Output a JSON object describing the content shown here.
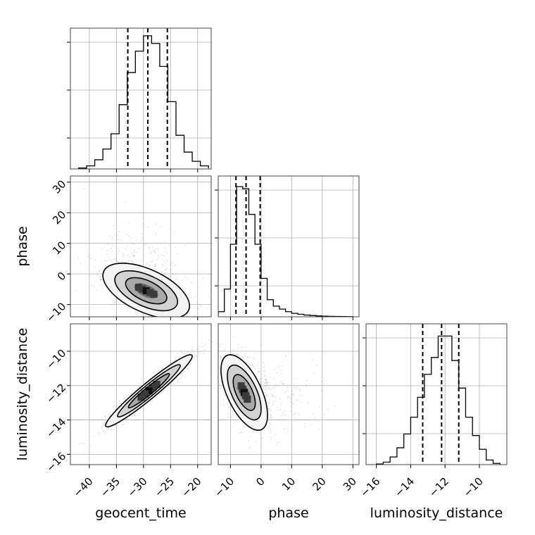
{
  "chart_data": {
    "type": "corner",
    "parameters": [
      "geocent_time",
      "phase",
      "luminosity_distance"
    ],
    "axis_labels": {
      "x": [
        "geocent_time",
        "phase",
        "luminosity_distance"
      ],
      "y": [
        "phase",
        "luminosity_distance"
      ]
    },
    "ranges": {
      "geocent_time": [
        -43.5,
        -17.5
      ],
      "phase": [
        -14,
        32
      ],
      "luminosity_distance": [
        -16.6,
        -8.4
      ]
    },
    "ticks": {
      "geocent_time": [
        -40,
        -35,
        -30,
        -25,
        -20
      ],
      "phase": [
        -10,
        0,
        10,
        20,
        30
      ],
      "luminosity_distance": [
        -16,
        -14,
        -12,
        -10
      ]
    },
    "quantiles": {
      "geocent_time": [
        -32.9,
        -29.2,
        -25.6
      ],
      "phase": [
        -8.2,
        -4.9,
        -0.3
      ],
      "luminosity_distance": [
        -13.3,
        -12.2,
        -11.2
      ]
    },
    "histograms": [
      {
        "parameter": "geocent_time",
        "bin_edges": [
          -42,
          -40.5,
          -39,
          -37.5,
          -36,
          -34.5,
          -33,
          -31.5,
          -30,
          -28.5,
          -27,
          -25.5,
          -24,
          -22.5,
          -21,
          -19.5,
          -18
        ],
        "counts": [
          0.3,
          1.0,
          3.0,
          6.5,
          11.5,
          21.0,
          31.5,
          38.5,
          43.5,
          41.0,
          33.5,
          22.0,
          11.0,
          5.5,
          2.5,
          1.0,
          0.2
        ],
        "ymax": 46
      },
      {
        "parameter": "phase",
        "bin_edges": [
          -14,
          -12,
          -10,
          -8,
          -6,
          -4,
          -2,
          0,
          2,
          4,
          6,
          8,
          10,
          12,
          14,
          16,
          18,
          20,
          22,
          24,
          26,
          28,
          30
        ],
        "counts": [
          1.2,
          6.5,
          17.0,
          30.5,
          30.0,
          24.0,
          17.0,
          9.0,
          4.0,
          2.5,
          1.8,
          1.2,
          0.8,
          0.6,
          0.4,
          0.3,
          0.2,
          0.15,
          0.1,
          0.08,
          0.05,
          0.03
        ],
        "ymax": 33
      },
      {
        "parameter": "luminosity_distance",
        "bin_edges": [
          -16,
          -15.6,
          -15.2,
          -14.8,
          -14.4,
          -14,
          -13.6,
          -13.2,
          -12.8,
          -12.4,
          -12,
          -11.6,
          -11.2,
          -10.8,
          -10.4,
          -10,
          -9.6,
          -9.2,
          -8.8
        ],
        "counts": [
          0.2,
          0.8,
          2.5,
          5.5,
          10.0,
          15.5,
          22.0,
          29.5,
          35.0,
          42.0,
          42.0,
          34.0,
          25.0,
          15.5,
          9.5,
          5.0,
          1.5,
          0.4
        ],
        "ymax": 46
      }
    ],
    "joint": [
      {
        "x": "geocent_time",
        "y": "phase",
        "center": [
          -29.5,
          -5.5
        ],
        "spread": [
          4.0,
          4.5
        ],
        "correlation": -0.55
      },
      {
        "x": "geocent_time",
        "y": "luminosity_distance",
        "center": [
          -29.0,
          -12.3
        ],
        "spread": [
          4.0,
          1.05
        ],
        "correlation": 0.96
      },
      {
        "x": "phase",
        "y": "luminosity_distance",
        "center": [
          -5.5,
          -12.4
        ],
        "spread": [
          3.8,
          1.1
        ],
        "correlation": -0.6
      }
    ],
    "grid": true
  }
}
